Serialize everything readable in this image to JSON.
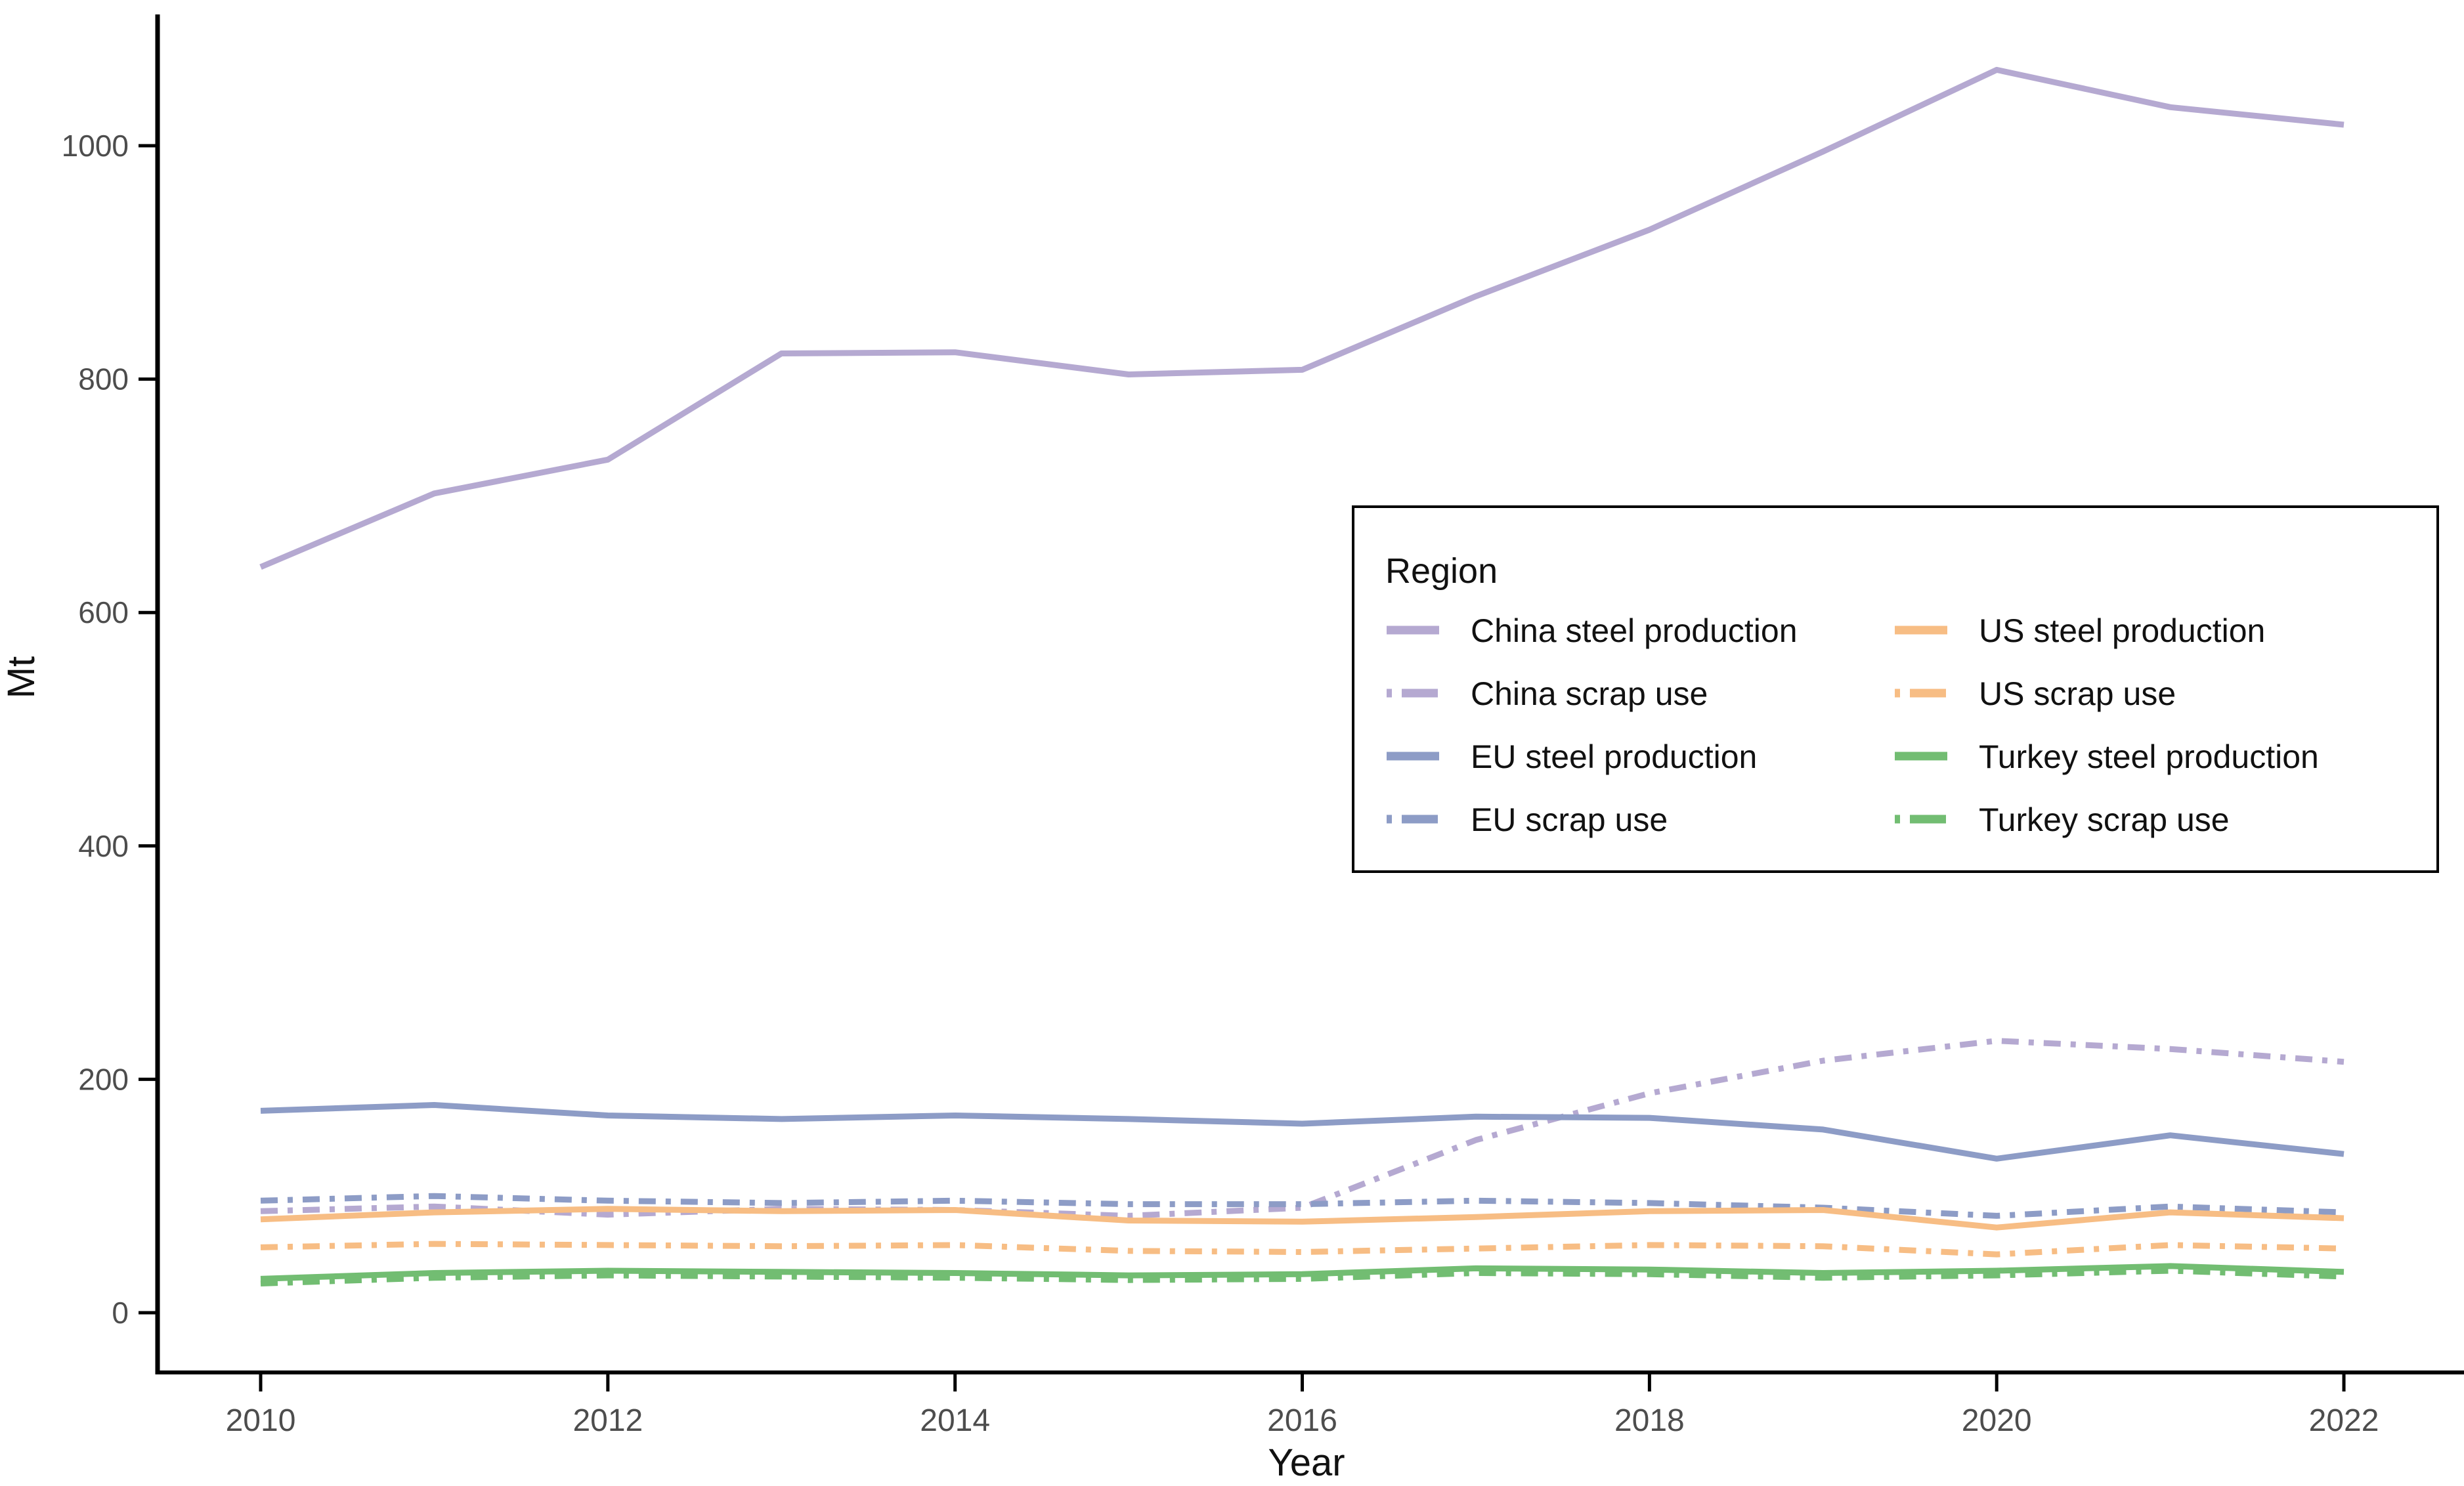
{
  "figure": {
    "background": "#ffffff",
    "axis_color": "#000000",
    "tick_label_color": "#4d4d4d"
  },
  "legend": {
    "title": "Region"
  },
  "axes": {
    "x_title": "Year",
    "y_title": "Mt"
  },
  "chart_data": {
    "type": "line",
    "title": "",
    "xlabel": "Year",
    "ylabel": "Mt",
    "x": [
      2010,
      2011,
      2012,
      2013,
      2014,
      2015,
      2016,
      2017,
      2018,
      2019,
      2020,
      2021,
      2022
    ],
    "x_ticks": [
      2010,
      2012,
      2014,
      2016,
      2018,
      2020,
      2022
    ],
    "y_ticks": [
      0,
      200,
      400,
      600,
      800,
      1000
    ],
    "xlim": [
      2010,
      2022
    ],
    "ylim": [
      0,
      1100
    ],
    "grid": false,
    "legend_position": "inside-upper-right",
    "legend_title": "Region",
    "series": [
      {
        "name": "China steel production",
        "region": "China",
        "measure": "steel production",
        "style": "solid",
        "color": "#b5a9d1",
        "values": [
          639,
          702,
          731,
          822,
          823,
          804,
          808,
          871,
          928,
          995,
          1065,
          1033,
          1018
        ]
      },
      {
        "name": "China scrap use",
        "region": "China",
        "measure": "scrap use",
        "style": "dashdot",
        "color": "#b5a9d1",
        "values": [
          87,
          91,
          84,
          89,
          88,
          83,
          90,
          148,
          188,
          216,
          233,
          226,
          215
        ]
      },
      {
        "name": "EU steel production",
        "region": "EU",
        "measure": "steel production",
        "style": "solid",
        "color": "#8d9cc6",
        "values": [
          173,
          178,
          169,
          166,
          169,
          166,
          162,
          168,
          167,
          157,
          132,
          152,
          136
        ]
      },
      {
        "name": "EU scrap use",
        "region": "EU",
        "measure": "scrap use",
        "style": "dashdot",
        "color": "#8d9cc6",
        "values": [
          96,
          100,
          96,
          94,
          96,
          93,
          93,
          96,
          94,
          90,
          83,
          91,
          86
        ]
      },
      {
        "name": "US steel production",
        "region": "US",
        "measure": "steel production",
        "style": "solid",
        "color": "#f7bd84",
        "values": [
          80,
          86,
          89,
          87,
          88,
          79,
          78,
          82,
          87,
          88,
          73,
          86,
          81
        ]
      },
      {
        "name": "US scrap use",
        "region": "US",
        "measure": "scrap use",
        "style": "dashdot",
        "color": "#f7bd84",
        "values": [
          56,
          59,
          58,
          57,
          58,
          53,
          52,
          55,
          58,
          57,
          50,
          58,
          55
        ]
      },
      {
        "name": "Turkey steel production",
        "region": "Turkey",
        "measure": "steel production",
        "style": "solid",
        "color": "#72bd72",
        "values": [
          29,
          34,
          36,
          35,
          34,
          32,
          33,
          38,
          37,
          34,
          36,
          40,
          35
        ]
      },
      {
        "name": "Turkey scrap use",
        "region": "Turkey",
        "measure": "scrap use",
        "style": "dashdot",
        "color": "#72bd72",
        "values": [
          25,
          30,
          32,
          31,
          30,
          28,
          29,
          34,
          33,
          30,
          32,
          36,
          31
        ]
      }
    ]
  }
}
